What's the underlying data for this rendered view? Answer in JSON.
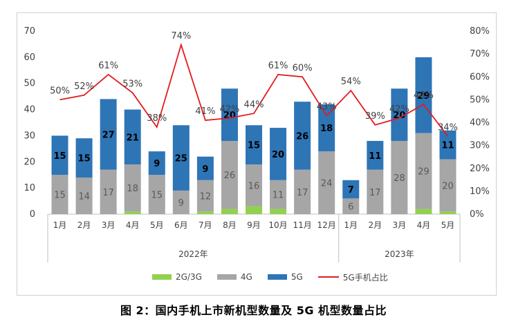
{
  "chart_data": {
    "type": "bar",
    "stacked": true,
    "categories": [
      "1月",
      "2月",
      "3月",
      "4月",
      "5月",
      "6月",
      "7月",
      "8月",
      "9月",
      "10月",
      "11月",
      "12月",
      "1月",
      "2月",
      "3月",
      "4月",
      "5月"
    ],
    "groups": [
      {
        "label": "2022年",
        "from": 0,
        "to": 11
      },
      {
        "label": "2023年",
        "from": 12,
        "to": 16
      }
    ],
    "series": [
      {
        "name": "2G/3G",
        "color": "#92d050",
        "values": [
          0,
          0,
          0,
          1,
          0,
          0,
          1,
          2,
          3,
          2,
          0,
          0,
          0,
          0,
          0,
          2,
          1
        ]
      },
      {
        "name": "4G",
        "color": "#a6a6a6",
        "values": [
          15,
          14,
          17,
          18,
          15,
          9,
          12,
          26,
          16,
          11,
          17,
          24,
          6,
          17,
          28,
          29,
          20
        ],
        "labels": [
          "15",
          "14",
          "17",
          "18",
          "15",
          "9",
          "12",
          "26",
          "16",
          "11",
          "17",
          "24",
          "6",
          "17",
          "28",
          "29",
          "20"
        ]
      },
      {
        "name": "5G",
        "color": "#2e75b6",
        "values": [
          15,
          15,
          27,
          21,
          9,
          25,
          9,
          20,
          15,
          20,
          26,
          18,
          7,
          11,
          20,
          29,
          11
        ],
        "labels": [
          "15",
          "15",
          "27",
          "21",
          "9",
          "25",
          "9",
          "20",
          "15",
          "20",
          "26",
          "18",
          "7",
          "11",
          "20",
          "29",
          "11"
        ]
      }
    ],
    "line": {
      "name": "5G手机占比",
      "color": "#e31a1c",
      "values": [
        50,
        52,
        61,
        53,
        38,
        74,
        41,
        42,
        44,
        61,
        60,
        43,
        54,
        39,
        42,
        48,
        34
      ],
      "labels": [
        "50%",
        "52%",
        "61%",
        "53%",
        "38%",
        "74%",
        "41%",
        "42%",
        "44%",
        "61%",
        "60%",
        "43%",
        "54%",
        "39%",
        "42%",
        "48%",
        "34%"
      ]
    },
    "y_left": {
      "min": 0,
      "max": 70,
      "ticks": [
        "0",
        "10",
        "20",
        "30",
        "40",
        "50",
        "60",
        "70"
      ]
    },
    "y_right": {
      "min": 0,
      "max": 80,
      "ticks": [
        "0%",
        "10%",
        "20%",
        "30%",
        "40%",
        "50%",
        "60%",
        "70%",
        "80%"
      ]
    },
    "grid": false,
    "legend_position": "bottom"
  },
  "legend": {
    "items": [
      "2G/3G",
      "4G",
      "5G",
      "5G手机占比"
    ]
  },
  "caption": "图 2：国内手机上市新机型数量及 5G 机型数量占比"
}
